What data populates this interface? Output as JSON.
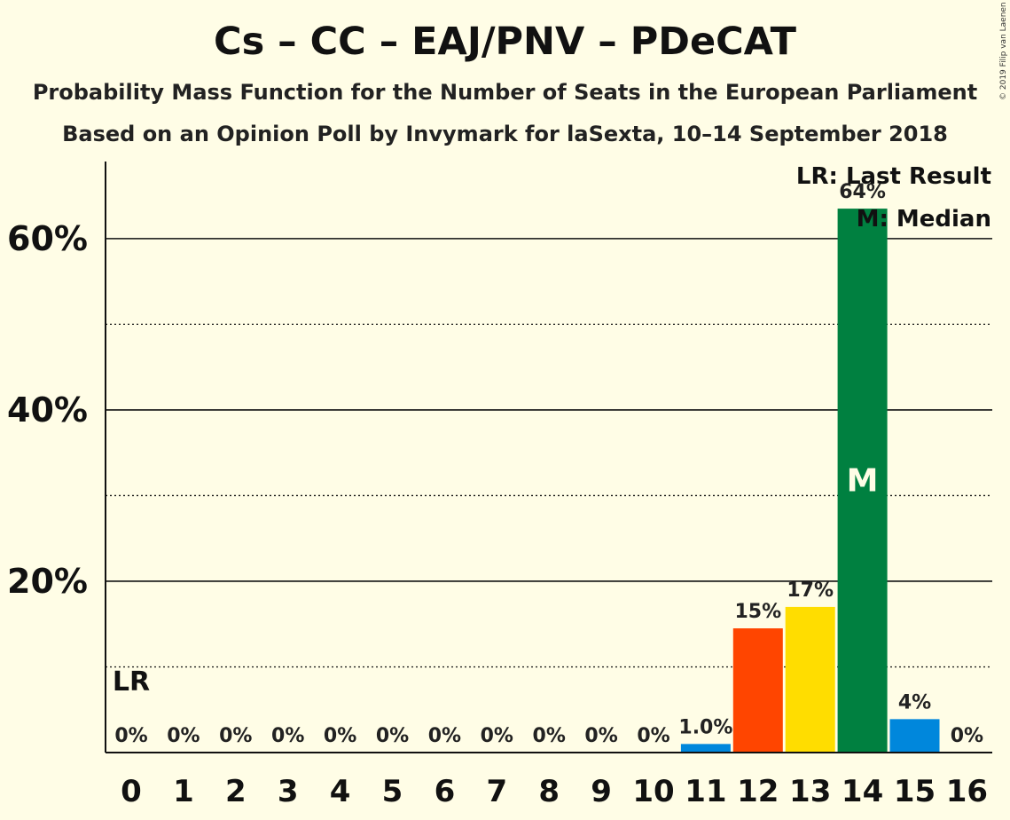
{
  "header": {
    "title": "Cs – CC – EAJ/PNV – PDeCAT",
    "subtitle1": "Probability Mass Function for the Number of Seats in the European Parliament",
    "subtitle2": "Based on an Opinion Poll by Invymark for laSexta, 10–14 September 2018",
    "copyright": "© 2019 Filip van Laenen"
  },
  "legend": {
    "lr": "LR: Last Result",
    "median": "M: Median"
  },
  "chart_data": {
    "type": "bar",
    "categories": [
      "0",
      "1",
      "2",
      "3",
      "4",
      "5",
      "6",
      "7",
      "8",
      "9",
      "10",
      "11",
      "12",
      "13",
      "14",
      "15",
      "16"
    ],
    "values": [
      0,
      0,
      0,
      0,
      0,
      0,
      0,
      0,
      0,
      0,
      0,
      1.0,
      14.5,
      17.0,
      63.5,
      3.9,
      0
    ],
    "labels": [
      "0%",
      "0%",
      "0%",
      "0%",
      "0%",
      "0%",
      "0%",
      "0%",
      "0%",
      "0%",
      "0%",
      "1.0%",
      "15%",
      "17%",
      "64%",
      "4%",
      "0%"
    ],
    "bar_colors": [
      "#0087DC",
      "#0087DC",
      "#0087DC",
      "#0087DC",
      "#0087DC",
      "#0087DC",
      "#0087DC",
      "#0087DC",
      "#0087DC",
      "#0087DC",
      "#0087DC",
      "#0087DC",
      "#FF4500",
      "#FFDD00",
      "#008040",
      "#0087DC",
      "#0087DC"
    ],
    "ylim": [
      0,
      69
    ],
    "yticks": [
      20,
      40,
      60
    ],
    "ytick_labels": [
      "20%",
      "40%",
      "60%"
    ],
    "minor_gridlines": [
      10,
      30,
      50
    ],
    "last_result_seat": 0,
    "last_result_label": "LR",
    "median_seat": 14,
    "median_label": "M",
    "grid": true,
    "legend_position": "top-right"
  }
}
